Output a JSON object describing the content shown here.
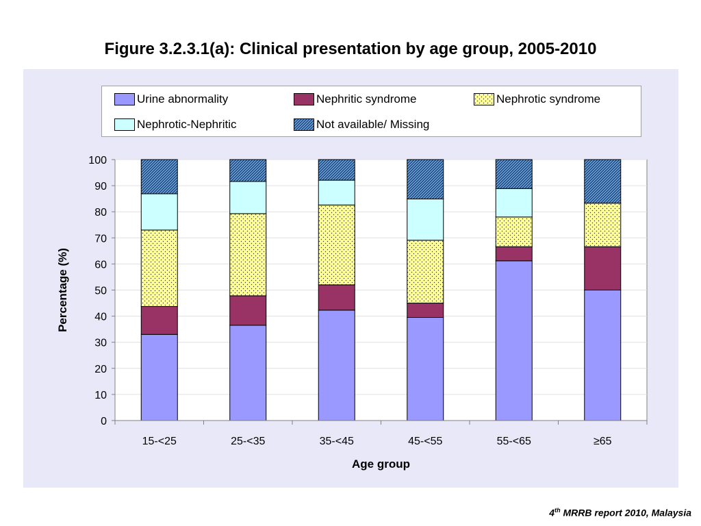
{
  "title": "Figure 3.2.3.1(a):  Clinical presentation by age group, 2005-2010",
  "footer": {
    "sup_num": "4",
    "sup": "th",
    "rest": " MRRB report 2010, Malaysia"
  },
  "chart_data": {
    "type": "bar",
    "stacked": true,
    "xlabel": "Age group",
    "ylabel": "Percentage (%)",
    "ylim": [
      0,
      100
    ],
    "yticks": [
      0,
      10,
      20,
      30,
      40,
      50,
      60,
      70,
      80,
      90,
      100
    ],
    "grid": true,
    "legend_position": "top",
    "categories": [
      "15-<25",
      "25-<35",
      "35-<45",
      "45-<55",
      "55-<65",
      "≥65"
    ],
    "series": [
      {
        "name": "Urine abnormality",
        "color": "#9999ff",
        "pattern": "solid",
        "values": [
          33,
          36.5,
          42.3,
          39.5,
          61.2,
          50
        ]
      },
      {
        "name": "Nephritic syndrome",
        "color": "#993366",
        "pattern": "solid",
        "values": [
          10.7,
          11.3,
          9.7,
          5.5,
          5.4,
          16.6
        ]
      },
      {
        "name": "Nephrotic syndrome",
        "color": "#ffff99",
        "pattern": "dots",
        "values": [
          29.3,
          31.5,
          30.6,
          24.1,
          11.4,
          16.7
        ]
      },
      {
        "name": "Nephrotic-Nephritic",
        "color": "#ccffff",
        "pattern": "solid",
        "values": [
          13.9,
          12.3,
          9.5,
          15.8,
          10.9,
          0
        ]
      },
      {
        "name": "Not available/ Missing",
        "color": "#336699",
        "pattern": "hatch",
        "values": [
          13.1,
          8.4,
          7.9,
          15.1,
          11.1,
          16.7
        ]
      }
    ]
  }
}
